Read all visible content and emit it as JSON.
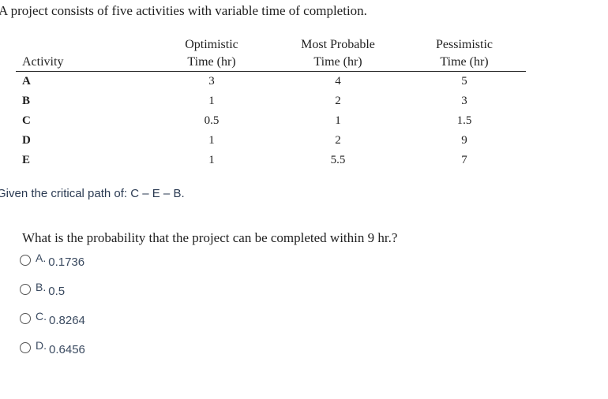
{
  "intro": "A project consists of five activities with variable time of completion.",
  "table": {
    "headers": {
      "activity": "Activity",
      "optimistic_line1": "Optimistic",
      "optimistic_line2": "Time (hr)",
      "most_probable_line1": "Most Probable",
      "most_probable_line2": "Time (hr)",
      "pessimistic_line1": "Pessimistic",
      "pessimistic_line2": "Time (hr)"
    },
    "rows": [
      {
        "activity": "A",
        "optimistic": "3",
        "most_probable": "4",
        "pessimistic": "5"
      },
      {
        "activity": "B",
        "optimistic": "1",
        "most_probable": "2",
        "pessimistic": "3"
      },
      {
        "activity": "C",
        "optimistic": "0.5",
        "most_probable": "1",
        "pessimistic": "1.5"
      },
      {
        "activity": "D",
        "optimistic": "1",
        "most_probable": "2",
        "pessimistic": "9"
      },
      {
        "activity": "E",
        "optimistic": "1",
        "most_probable": "5.5",
        "pessimistic": "7"
      }
    ]
  },
  "critical_path": "Given the critical path of: C – E – B.",
  "question": "What is the probability that the project can be completed within 9 hr.?",
  "choices": [
    {
      "letter": "A.",
      "value": "0.1736"
    },
    {
      "letter": "B.",
      "value": "0.5"
    },
    {
      "letter": "C.",
      "value": "0.8264"
    },
    {
      "letter": "D.",
      "value": "0.6456"
    }
  ]
}
